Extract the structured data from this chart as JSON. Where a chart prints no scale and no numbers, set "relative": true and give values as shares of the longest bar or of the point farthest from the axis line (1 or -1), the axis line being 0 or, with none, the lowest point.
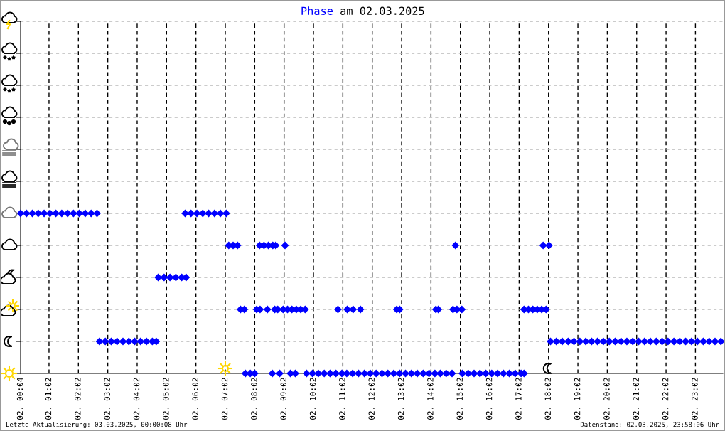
{
  "chart_data": {
    "type": "scatter",
    "title": "Phase am 02.03.2025",
    "relative": true,
    "marker": "diamond",
    "grid": true,
    "legend": false,
    "xlim": [
      "2025-03-02T00:04",
      "2025-03-02T23:58"
    ],
    "xticks": [
      {
        "value": "2025-03-02T00:04",
        "label": "02. 00:04"
      },
      {
        "value": "2025-03-02T01:02",
        "label": "02. 01:02"
      },
      {
        "value": "2025-03-02T02:02",
        "label": "02. 02:02"
      },
      {
        "value": "2025-03-02T03:02",
        "label": "02. 03:02"
      },
      {
        "value": "2025-03-02T04:02",
        "label": "02. 04:02"
      },
      {
        "value": "2025-03-02T05:02",
        "label": "02. 05:02"
      },
      {
        "value": "2025-03-02T06:02",
        "label": "02. 06:02"
      },
      {
        "value": "2025-03-02T07:02",
        "label": "02. 07:02"
      },
      {
        "value": "2025-03-02T08:02",
        "label": "02. 08:02"
      },
      {
        "value": "2025-03-02T09:02",
        "label": "02. 09:02"
      },
      {
        "value": "2025-03-02T10:02",
        "label": "02. 10:02"
      },
      {
        "value": "2025-03-02T11:02",
        "label": "02. 11:02"
      },
      {
        "value": "2025-03-02T12:02",
        "label": "02. 12:02"
      },
      {
        "value": "2025-03-02T13:02",
        "label": "02. 13:02"
      },
      {
        "value": "2025-03-02T14:02",
        "label": "02. 14:02"
      },
      {
        "value": "2025-03-02T15:02",
        "label": "02. 15:02"
      },
      {
        "value": "2025-03-02T16:02",
        "label": "02. 16:02"
      },
      {
        "value": "2025-03-02T17:02",
        "label": "02. 17:02"
      },
      {
        "value": "2025-03-02T18:02",
        "label": "02. 18:02"
      },
      {
        "value": "2025-03-02T19:02",
        "label": "02. 19:02"
      },
      {
        "value": "2025-03-02T20:02",
        "label": "02. 20:02"
      },
      {
        "value": "2025-03-02T21:02",
        "label": "02. 21:02"
      },
      {
        "value": "2025-03-02T22:02",
        "label": "02. 22:02"
      },
      {
        "value": "2025-03-02T23:02",
        "label": "02. 23:02"
      }
    ],
    "annotations": [
      "Letzte Aktualisierung: 03.03.2025, 00:00:08 Uhr",
      "Datenstand: 02.03.2025, 23:58:06 Uhr"
    ],
    "series": [
      {
        "color": "#0000ff",
        "x": [
          "2025-03-02T00:04",
          "2025-03-02T00:16",
          "2025-03-02T00:28",
          "2025-03-02T00:40",
          "2025-03-02T00:52",
          "2025-03-02T01:04",
          "2025-03-02T01:16",
          "2025-03-02T01:28",
          "2025-03-02T01:40",
          "2025-03-02T01:52",
          "2025-03-02T02:04",
          "2025-03-02T02:16",
          "2025-03-02T02:28",
          "2025-03-02T02:40",
          "2025-03-02T05:40",
          "2025-03-02T05:52",
          "2025-03-02T06:04",
          "2025-03-02T06:16",
          "2025-03-02T06:28",
          "2025-03-02T06:40",
          "2025-03-02T06:52",
          "2025-03-02T07:04",
          "2025-03-02T02:45",
          "2025-03-02T02:57",
          "2025-03-02T03:09",
          "2025-03-02T03:21",
          "2025-03-02T03:33",
          "2025-03-02T03:45",
          "2025-03-02T03:57",
          "2025-03-02T04:09",
          "2025-03-02T04:21",
          "2025-03-02T04:33",
          "2025-03-02T04:41",
          "2025-03-02T18:06",
          "2025-03-02T18:18",
          "2025-03-02T18:30",
          "2025-03-02T18:42",
          "2025-03-02T18:54",
          "2025-03-02T19:06",
          "2025-03-02T19:18",
          "2025-03-02T19:30",
          "2025-03-02T19:42",
          "2025-03-02T19:54",
          "2025-03-02T20:06",
          "2025-03-02T20:18",
          "2025-03-02T20:30",
          "2025-03-02T20:42",
          "2025-03-02T20:54",
          "2025-03-02T21:06",
          "2025-03-02T21:18",
          "2025-03-02T21:30",
          "2025-03-02T21:42",
          "2025-03-02T21:54",
          "2025-03-02T22:06",
          "2025-03-02T22:18",
          "2025-03-02T22:30",
          "2025-03-02T22:42",
          "2025-03-02T22:54",
          "2025-03-02T23:06",
          "2025-03-02T23:18",
          "2025-03-02T23:30",
          "2025-03-02T23:42",
          "2025-03-02T23:54",
          "2025-03-02T04:45",
          "2025-03-02T04:57",
          "2025-03-02T05:09",
          "2025-03-02T05:21",
          "2025-03-02T05:33",
          "2025-03-02T05:42",
          "2025-03-02T07:09",
          "2025-03-02T07:18",
          "2025-03-02T07:27",
          "2025-03-02T08:12",
          "2025-03-02T08:21",
          "2025-03-02T08:30",
          "2025-03-02T08:39",
          "2025-03-02T08:45",
          "2025-03-02T09:04",
          "2025-03-02T14:52",
          "2025-03-02T17:51",
          "2025-03-02T18:03",
          "2025-03-02T07:33",
          "2025-03-02T07:41",
          "2025-03-02T08:06",
          "2025-03-02T08:13",
          "2025-03-02T08:28",
          "2025-03-02T08:43",
          "2025-03-02T08:49",
          "2025-03-02T09:00",
          "2025-03-02T09:09",
          "2025-03-02T09:18",
          "2025-03-02T09:27",
          "2025-03-02T09:36",
          "2025-03-02T09:45",
          "2025-03-02T10:52",
          "2025-03-02T11:11",
          "2025-03-02T11:23",
          "2025-03-02T11:38",
          "2025-03-02T12:52",
          "2025-03-02T12:58",
          "2025-03-02T14:12",
          "2025-03-02T14:17",
          "2025-03-02T14:47",
          "2025-03-02T14:55",
          "2025-03-02T15:05",
          "2025-03-02T17:12",
          "2025-03-02T17:21",
          "2025-03-02T17:30",
          "2025-03-02T17:39",
          "2025-03-02T17:48",
          "2025-03-02T17:57",
          "2025-03-02T07:43",
          "2025-03-02T07:53",
          "2025-03-02T08:02",
          "2025-03-02T08:38",
          "2025-03-02T08:53",
          "2025-03-02T09:15",
          "2025-03-02T09:25",
          "2025-03-02T09:48",
          "2025-03-02T10:00",
          "2025-03-02T10:12",
          "2025-03-02T10:24",
          "2025-03-02T10:36",
          "2025-03-02T10:48",
          "2025-03-02T11:00",
          "2025-03-02T11:10",
          "2025-03-02T11:22",
          "2025-03-02T11:34",
          "2025-03-02T11:46",
          "2025-03-02T11:58",
          "2025-03-02T12:10",
          "2025-03-02T12:22",
          "2025-03-02T12:34",
          "2025-03-02T12:46",
          "2025-03-02T12:58",
          "2025-03-02T13:10",
          "2025-03-02T13:22",
          "2025-03-02T13:34",
          "2025-03-02T13:46",
          "2025-03-02T13:58",
          "2025-03-02T14:10",
          "2025-03-02T14:21",
          "2025-03-02T14:33",
          "2025-03-02T14:45",
          "2025-03-02T15:06",
          "2025-03-02T15:18",
          "2025-03-02T15:30",
          "2025-03-02T15:42",
          "2025-03-02T15:54",
          "2025-03-02T16:06",
          "2025-03-02T16:18",
          "2025-03-02T16:30",
          "2025-03-02T16:42",
          "2025-03-02T16:54",
          "2025-03-02T17:06",
          "2025-03-02T17:12"
        ],
        "values": [
          1,
          1,
          1,
          1,
          1,
          1,
          1,
          1,
          1,
          1,
          1,
          1,
          1,
          1,
          1,
          1,
          1,
          1,
          1,
          1,
          1,
          1,
          0.2,
          0.2,
          0.2,
          0.2,
          0.2,
          0.2,
          0.2,
          0.2,
          0.2,
          0.2,
          0.2,
          0.2,
          0.2,
          0.2,
          0.2,
          0.2,
          0.2,
          0.2,
          0.2,
          0.2,
          0.2,
          0.2,
          0.2,
          0.2,
          0.2,
          0.2,
          0.2,
          0.2,
          0.2,
          0.2,
          0.2,
          0.2,
          0.2,
          0.2,
          0.2,
          0.2,
          0.2,
          0.2,
          0.2,
          0.2,
          0.2,
          0.6,
          0.6,
          0.6,
          0.6,
          0.6,
          0.6,
          0.8,
          0.8,
          0.8,
          0.8,
          0.8,
          0.8,
          0.8,
          0.8,
          0.8,
          0.8,
          0.8,
          0.8,
          0.4,
          0.4,
          0.4,
          0.4,
          0.4,
          0.4,
          0.4,
          0.4,
          0.4,
          0.4,
          0.4,
          0.4,
          0.4,
          0.4,
          0.4,
          0.4,
          0.4,
          0.4,
          0.4,
          0.4,
          0.4,
          0.4,
          0.4,
          0.4,
          0.4,
          0.4,
          0.4,
          0.4,
          0.4,
          0.4,
          0,
          0,
          0,
          0,
          0,
          0,
          0,
          0,
          0,
          0,
          0,
          0,
          0,
          0,
          0,
          0,
          0,
          0,
          0,
          0,
          0,
          0,
          0,
          0,
          0,
          0,
          0,
          0,
          0,
          0,
          0,
          0,
          0,
          0,
          0,
          0,
          0,
          0,
          0,
          0,
          0,
          0,
          0,
          0,
          0
        ]
      }
    ]
  }
}
